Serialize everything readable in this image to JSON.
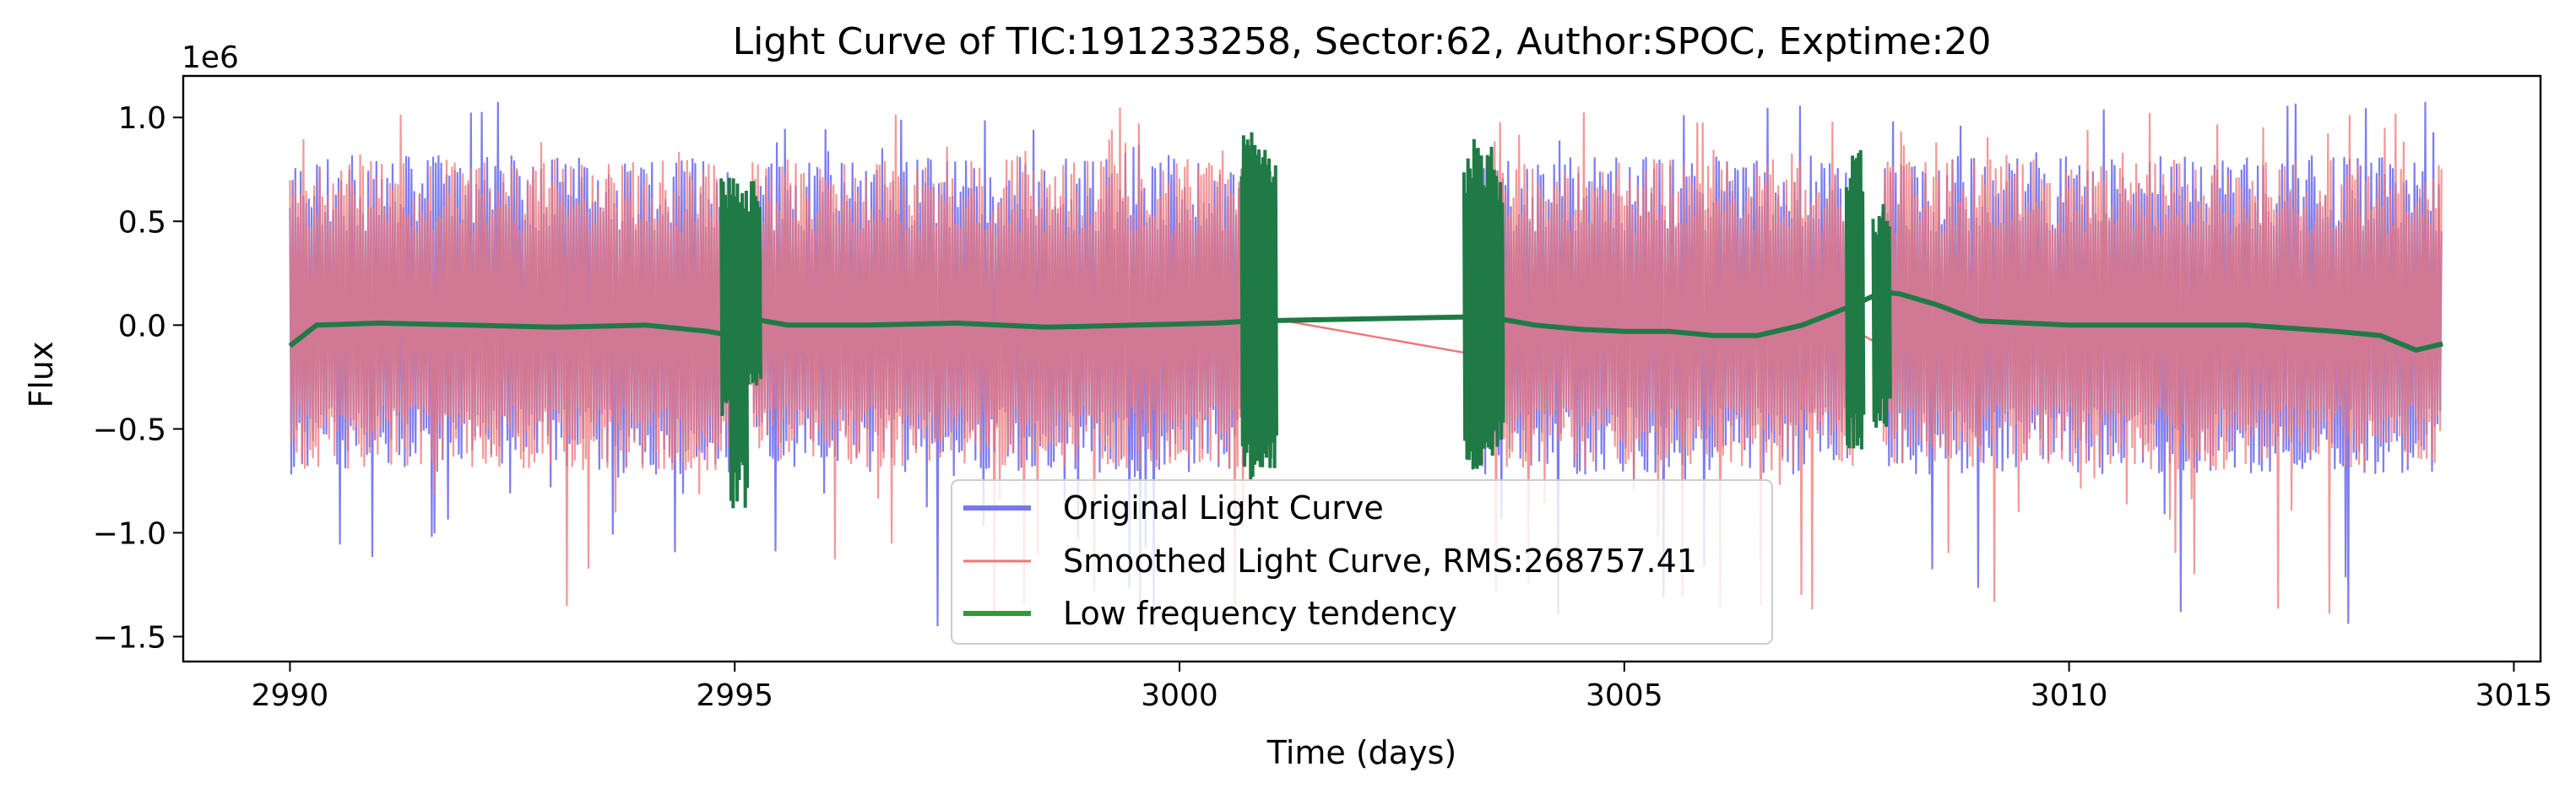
{
  "chart_data": {
    "type": "line",
    "title": "Light Curve of TIC:191233258, Sector:62, Author:SPOC, Exptime:20",
    "xlabel": "Time (days)",
    "ylabel": "Flux",
    "y_offset_label": "1e6",
    "xlim": [
      2988.8,
      3015.3
    ],
    "ylim": [
      -1.62,
      1.2
    ],
    "x_ticks": [
      2990,
      2995,
      3000,
      3005,
      3010,
      3015
    ],
    "y_ticks": [
      -1.5,
      -1.0,
      -0.5,
      0.0,
      0.5,
      1.0
    ],
    "x_tick_labels": [
      "2990",
      "2995",
      "3000",
      "3005",
      "3010",
      "3015"
    ],
    "y_tick_labels": [
      "−1.5",
      "−1.0",
      "−0.5",
      "0.0",
      "0.5",
      "1.0"
    ],
    "grid": false,
    "legend_position": "lower center",
    "segments": [
      [
        2990.0,
        2994.95
      ],
      [
        2995.2,
        3000.8
      ],
      [
        3003.3,
        3007.6
      ],
      [
        3007.9,
        3014.2
      ]
    ],
    "series": [
      {
        "name": "Original Light Curve",
        "color": "#7777ee",
        "style": "oscillating",
        "amplitude_range_1e6": [
          -1.47,
          1.08
        ],
        "typical_band_1e6": [
          -0.72,
          0.82
        ]
      },
      {
        "name": "Smoothed Light Curve, RMS:268757.41",
        "color": "#ee7777",
        "style": "oscillating",
        "amplitude_range_1e6": [
          -1.4,
          1.05
        ],
        "typical_band_1e6": [
          -0.7,
          0.8
        ]
      },
      {
        "name": "Low frequency tendency",
        "color": "#1f7a45",
        "style": "trend",
        "x": [
          2990.0,
          2990.3,
          2991.0,
          2992.0,
          2993.0,
          2994.0,
          2994.7,
          2994.95,
          2995.2,
          2995.6,
          2996.5,
          2997.5,
          2998.5,
          2999.5,
          3000.4,
          3000.8,
          3003.3,
          3003.6,
          3004.0,
          3004.5,
          3005.0,
          3005.5,
          3006.0,
          3006.5,
          3007.0,
          3007.3,
          3007.6,
          3007.9,
          3008.1,
          3008.5,
          3009.0,
          3010.0,
          3011.0,
          3012.0,
          3013.0,
          3013.5,
          3013.9,
          3014.2
        ],
        "y": [
          -0.1,
          0.0,
          0.01,
          0.0,
          -0.01,
          0.0,
          -0.03,
          -0.05,
          0.03,
          0.0,
          0.0,
          0.01,
          -0.01,
          0.0,
          0.01,
          0.02,
          0.04,
          0.03,
          0.0,
          -0.02,
          -0.03,
          -0.03,
          -0.05,
          -0.05,
          0.0,
          0.05,
          0.1,
          0.16,
          0.15,
          0.1,
          0.02,
          0.0,
          0.0,
          0.0,
          -0.03,
          -0.05,
          -0.12,
          -0.09
        ]
      }
    ]
  }
}
